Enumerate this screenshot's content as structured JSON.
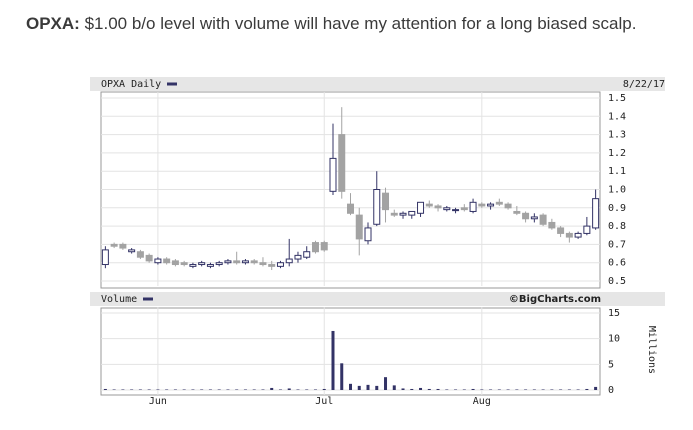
{
  "post": {
    "ticker": "OPXA:",
    "text": "$1.00 b/o level with volume will have my attention for a long biased scalp."
  },
  "chart_data": [
    {
      "type": "candlestick",
      "title": "OPXA Daily",
      "date": "8/22/17",
      "open": [
        0.59,
        0.7,
        0.7,
        0.66,
        0.66,
        0.64,
        0.6,
        0.62,
        0.61,
        0.6,
        0.58,
        0.59,
        0.58,
        0.59,
        0.6,
        0.61,
        0.6,
        0.61,
        0.6,
        0.59,
        0.58,
        0.6,
        0.62,
        0.63,
        0.71,
        0.71,
        0.99,
        1.3,
        0.92,
        0.86,
        0.72,
        0.81,
        0.98,
        0.87,
        0.86,
        0.86,
        0.87,
        0.92,
        0.91,
        0.89,
        0.89,
        0.9,
        0.88,
        0.92,
        0.91,
        0.93,
        0.92,
        0.88,
        0.87,
        0.84,
        0.86,
        0.82,
        0.79,
        0.76,
        0.74,
        0.76,
        0.79
      ],
      "high": [
        0.69,
        0.71,
        0.71,
        0.68,
        0.67,
        0.65,
        0.63,
        0.63,
        0.62,
        0.61,
        0.6,
        0.61,
        0.6,
        0.61,
        0.62,
        0.66,
        0.62,
        0.62,
        0.63,
        0.61,
        0.61,
        0.73,
        0.66,
        0.69,
        0.72,
        0.72,
        1.36,
        1.45,
        0.98,
        0.9,
        0.82,
        1.1,
        1.01,
        0.89,
        0.88,
        0.88,
        0.93,
        0.94,
        0.92,
        0.91,
        0.9,
        0.92,
        0.95,
        0.93,
        0.93,
        0.95,
        0.93,
        0.91,
        0.88,
        0.87,
        0.87,
        0.84,
        0.8,
        0.77,
        0.77,
        0.85,
        1.0
      ],
      "low": [
        0.57,
        0.68,
        0.67,
        0.65,
        0.62,
        0.6,
        0.59,
        0.59,
        0.58,
        0.58,
        0.57,
        0.58,
        0.57,
        0.58,
        0.59,
        0.59,
        0.59,
        0.59,
        0.58,
        0.56,
        0.57,
        0.58,
        0.6,
        0.62,
        0.65,
        0.66,
        0.97,
        0.95,
        0.86,
        0.64,
        0.7,
        0.8,
        0.82,
        0.85,
        0.84,
        0.84,
        0.85,
        0.9,
        0.88,
        0.88,
        0.87,
        0.88,
        0.87,
        0.9,
        0.89,
        0.91,
        0.89,
        0.86,
        0.82,
        0.82,
        0.8,
        0.78,
        0.74,
        0.71,
        0.73,
        0.75,
        0.78
      ],
      "close": [
        0.67,
        0.69,
        0.68,
        0.67,
        0.63,
        0.61,
        0.62,
        0.6,
        0.59,
        0.59,
        0.59,
        0.6,
        0.59,
        0.6,
        0.61,
        0.6,
        0.61,
        0.6,
        0.59,
        0.58,
        0.6,
        0.62,
        0.64,
        0.66,
        0.66,
        0.67,
        1.17,
        0.99,
        0.87,
        0.73,
        0.79,
        1.0,
        0.89,
        0.86,
        0.87,
        0.88,
        0.93,
        0.91,
        0.9,
        0.9,
        0.89,
        0.89,
        0.93,
        0.91,
        0.92,
        0.92,
        0.9,
        0.87,
        0.84,
        0.85,
        0.81,
        0.79,
        0.76,
        0.74,
        0.76,
        0.8,
        0.95
      ],
      "ylim": [
        0.5,
        1.5
      ],
      "yticks": [
        0.5,
        0.6,
        0.7,
        0.8,
        0.9,
        {
          "value": 1,
          "label": "1.0"
        },
        1.1,
        1.2,
        1.3,
        1.4,
        1.5
      ],
      "grid": true,
      "up_color": "#ffffff",
      "down_color": "#a3a3a3",
      "edge_color": "#333366"
    },
    {
      "type": "bar",
      "title": "Volume",
      "source": "©BigCharts.com",
      "y_label": "Millions",
      "categories": [
        null,
        null,
        null,
        null,
        null,
        null,
        "Jun",
        null,
        null,
        null,
        null,
        null,
        null,
        null,
        null,
        null,
        null,
        null,
        null,
        null,
        null,
        null,
        null,
        null,
        null,
        "Jul",
        null,
        null,
        null,
        null,
        null,
        null,
        null,
        null,
        null,
        null,
        null,
        null,
        null,
        null,
        null,
        null,
        null,
        "Aug",
        null,
        null,
        null,
        null,
        null,
        null,
        null,
        null,
        null,
        null,
        null,
        null,
        null
      ],
      "values": [
        0.2,
        0.1,
        0.1,
        0.1,
        0.1,
        0.1,
        0.1,
        0.1,
        0.1,
        0.1,
        0.1,
        0.1,
        0.1,
        0.1,
        0.1,
        0.1,
        0.1,
        0.1,
        0.1,
        0.4,
        0.1,
        0.3,
        0.1,
        0.1,
        0.1,
        0.2,
        11.5,
        5.2,
        1.2,
        0.8,
        1.0,
        0.8,
        2.5,
        0.9,
        0.3,
        0.2,
        0.4,
        0.2,
        0.2,
        0.1,
        0.1,
        0.1,
        0.2,
        0.1,
        0.1,
        0.1,
        0.1,
        0.1,
        0.1,
        0.1,
        0.1,
        0.1,
        0.1,
        0.1,
        0.1,
        0.2,
        0.6
      ],
      "ylim": [
        0,
        15
      ],
      "yticks": [
        0,
        5,
        10,
        15
      ],
      "grid": true,
      "color": "#333366"
    }
  ]
}
